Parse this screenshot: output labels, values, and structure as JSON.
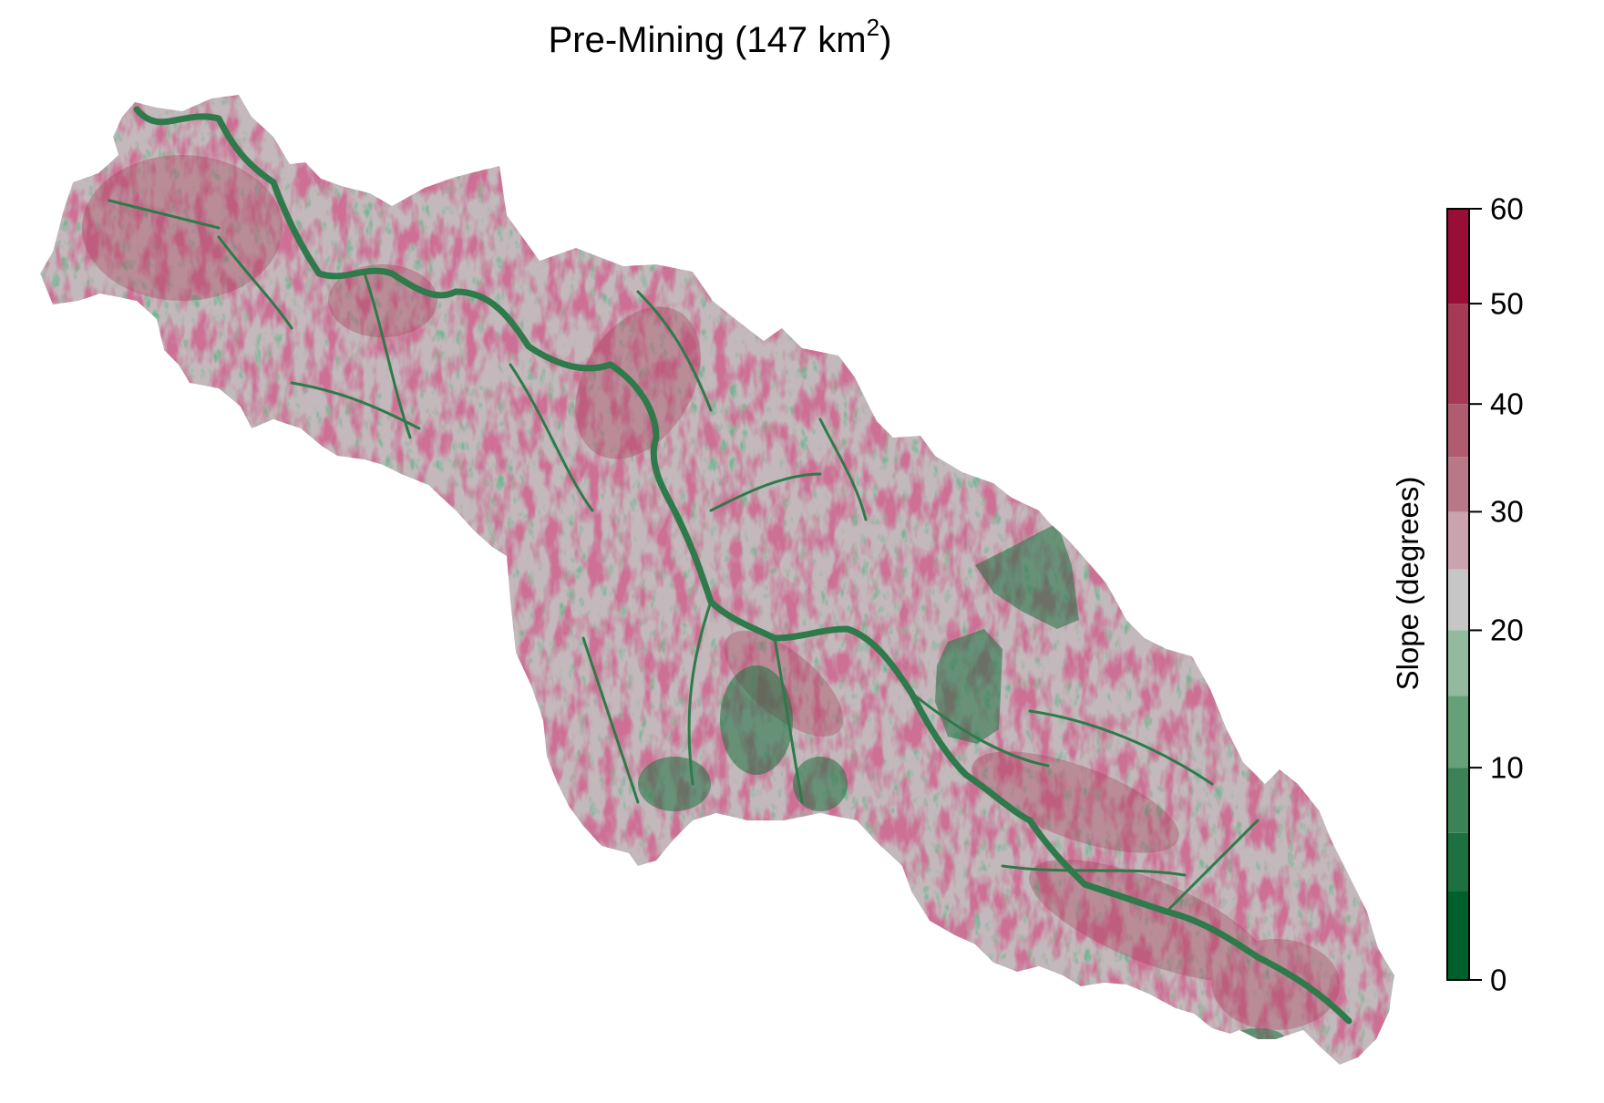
{
  "title": {
    "prefix": "Pre-Mining (147 km",
    "superscript": "2",
    "suffix": ")"
  },
  "legend": {
    "title": "Slope (degrees)",
    "ticks": [
      "0",
      "10",
      "20",
      "30",
      "40",
      "50",
      "60"
    ]
  },
  "chart_data": {
    "type": "heatmap",
    "variable": "slope",
    "unit": "degrees",
    "value_range": [
      0,
      60
    ],
    "ticks": [
      0,
      10,
      20,
      30,
      40,
      50,
      60
    ],
    "color_bins": [
      {
        "from": 0,
        "to": 3,
        "color": "#00602b"
      },
      {
        "from": 3,
        "to": 6,
        "color": "#1d7140"
      },
      {
        "from": 6,
        "to": 10,
        "color": "#3b8257"
      },
      {
        "from": 10,
        "to": 15,
        "color": "#66a078"
      },
      {
        "from": 15,
        "to": 20,
        "color": "#93ba9f"
      },
      {
        "from": 20,
        "to": 25,
        "color": "#c6c6c6"
      },
      {
        "from": 25,
        "to": 30,
        "color": "#c9a3ad"
      },
      {
        "from": 30,
        "to": 35,
        "color": "#b97888"
      },
      {
        "from": 35,
        "to": 40,
        "color": "#b05c70"
      },
      {
        "from": 40,
        "to": 50,
        "color": "#a63a56"
      },
      {
        "from": 50,
        "to": 60,
        "color": "#980e37"
      }
    ],
    "legend_placement": "right"
  }
}
